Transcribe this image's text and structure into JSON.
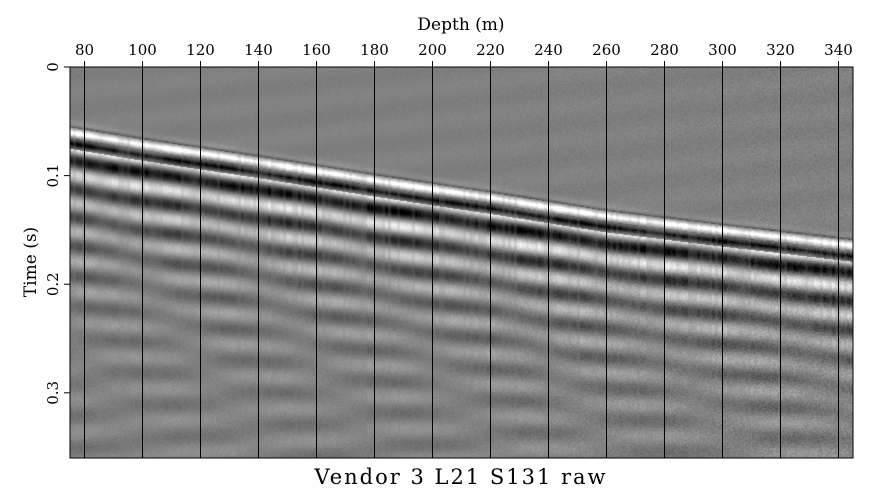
{
  "chart_data": {
    "type": "heatmap",
    "title": "Vendor 3 L21 S131 raw",
    "xlabel": "Depth (m)",
    "ylabel": "Time (s)",
    "x_axis_position": "top",
    "y_axis_inverted": true,
    "xlim": [
      75,
      345
    ],
    "ylim": [
      0,
      0.36
    ],
    "xticks": [
      80,
      100,
      120,
      140,
      160,
      180,
      200,
      220,
      240,
      260,
      280,
      300,
      320,
      340
    ],
    "xtick_labels": [
      "80",
      "100",
      "120",
      "140",
      "160",
      "180",
      "200",
      "220",
      "240",
      "260",
      "280",
      "300",
      "320",
      "340"
    ],
    "yticks": [
      0,
      0.1,
      0.2,
      0.3
    ],
    "ytick_labels": [
      "0",
      "0.1",
      "0.2",
      "0.3"
    ],
    "vertical_gridlines_at": [
      80,
      100,
      120,
      140,
      160,
      180,
      200,
      220,
      240,
      260,
      280,
      300,
      320,
      340
    ],
    "colormap": "grayscale",
    "first_arrival": [
      {
        "x": 75,
        "t": 0.058
      },
      {
        "x": 100,
        "t": 0.069
      },
      {
        "x": 140,
        "t": 0.085
      },
      {
        "x": 180,
        "t": 0.102
      },
      {
        "x": 220,
        "t": 0.118
      },
      {
        "x": 260,
        "t": 0.135
      },
      {
        "x": 300,
        "t": 0.148
      },
      {
        "x": 345,
        "t": 0.162
      }
    ]
  }
}
